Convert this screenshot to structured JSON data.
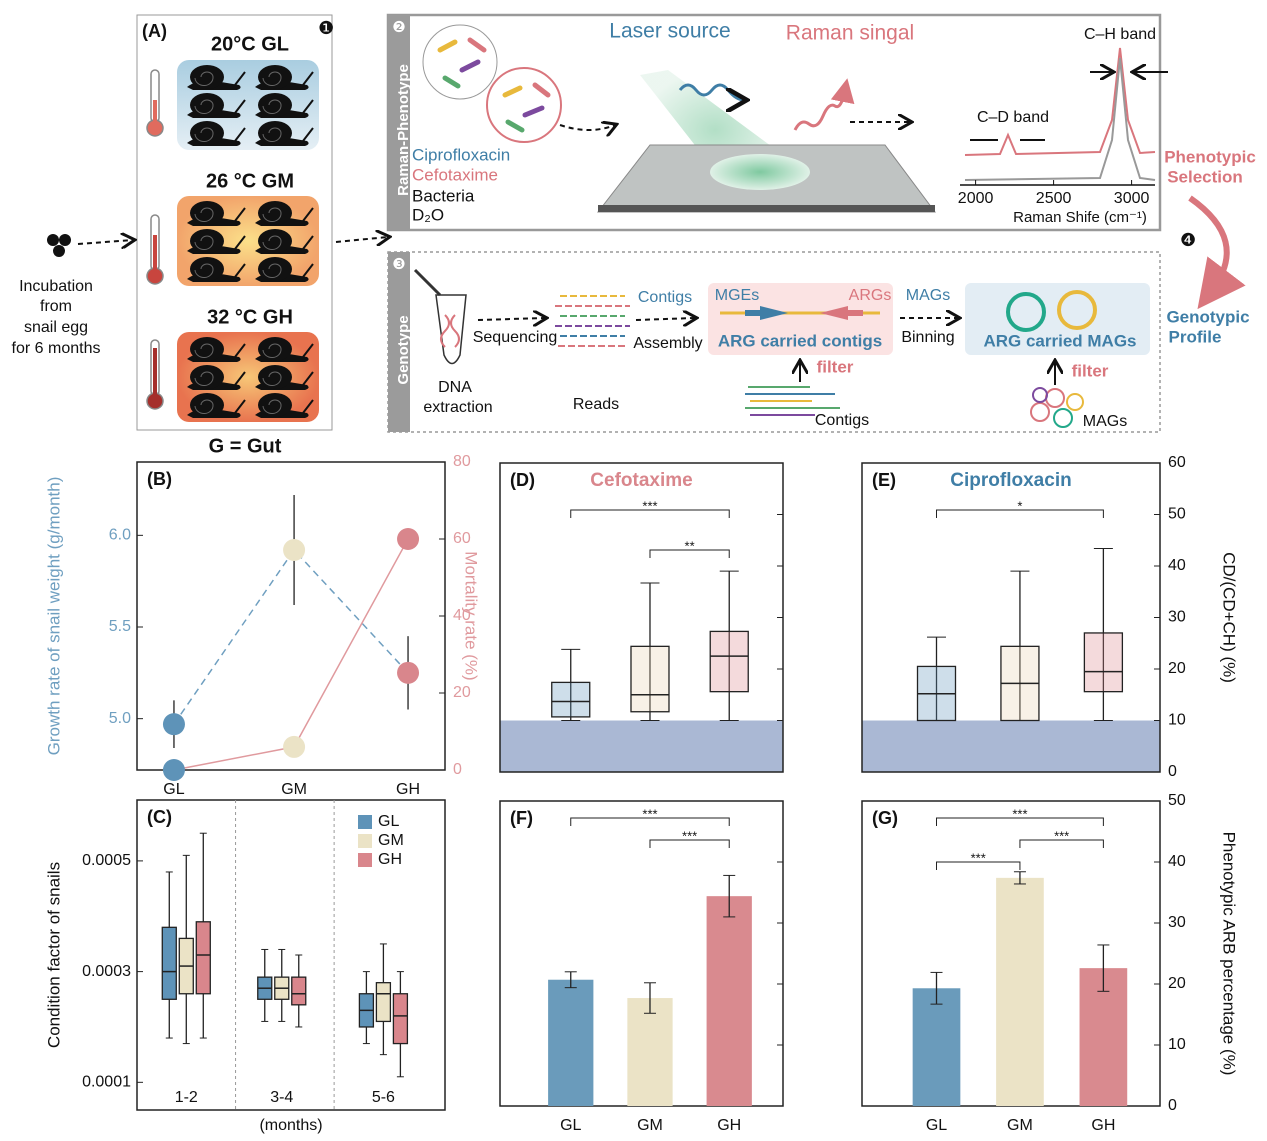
{
  "diagram": {
    "panel_a": {
      "label": "(A)",
      "step": "❶",
      "groups": [
        "20°C GL",
        "26 °C GM",
        "32 °C GH"
      ],
      "footer": "G = Gut"
    },
    "input": [
      "Incubation",
      "from",
      "snail egg",
      "for 6 months"
    ],
    "raman": {
      "step": "❷",
      "side": "Raman-Phenotype",
      "antibiotics": [
        "Ciprofloxacin",
        "Cefotaxime"
      ],
      "bacteria": "Bacteria",
      "water": "D₂O",
      "laser": "Laser source",
      "signal": "Raman singal",
      "ch": "C–H band",
      "cd": "C–D band",
      "spectrum": {
        "xlim": [
          1900,
          3150
        ],
        "xticks": [
          2000,
          2500,
          3000
        ],
        "x_label": "Raman Shife (cm⁻¹)"
      }
    },
    "selection": {
      "step": "❹",
      "phenotypic": [
        "Phenotypic",
        "Selection"
      ],
      "genotypic": [
        "Genotypic",
        "Profile"
      ]
    },
    "genotype": {
      "step": "❸",
      "side": "Genotype",
      "dna": [
        "DNA",
        "extraction"
      ],
      "sequencing": "Sequencing",
      "reads": "Reads",
      "contigs": "Contigs",
      "assembly": "Assembly",
      "mges": "MGEs",
      "args": "ARGs",
      "arg_contigs": "ARG carried contigs",
      "filter1": "filter",
      "contigs2": "Contigs",
      "mags": "MAGs",
      "binning": "Binning",
      "arg_mags": "ARG carried MAGs",
      "filter2": "filter",
      "mags2": "MAGs"
    }
  },
  "chart_data": [
    {
      "panel": "(B)",
      "type": "line",
      "categories": [
        "GL",
        "GM",
        "GH"
      ],
      "point_colors": [
        "#5e93b8",
        "#ebe3c6",
        "#d9868c"
      ],
      "ylim": [
        4.72,
        6.4
      ],
      "yticks": [
        {
          "value": 5,
          "label": "5.0"
        },
        5.5,
        {
          "value": 6,
          "label": "6.0"
        }
      ],
      "y_label": "Growth rate of snail weight (g/month)",
      "y2lim": [
        0,
        80
      ],
      "y2ticks": [
        0,
        20,
        40,
        60,
        80
      ],
      "y2_label": "Mortality rate (%)",
      "series": [
        {
          "color": "#6f9fc0",
          "dashed": true,
          "values": [
            4.97,
            5.92,
            5.25
          ],
          "errors": [
            0.13,
            0.3,
            0.2
          ]
        },
        {
          "color": "#e09a9e",
          "axis": "y2",
          "values": [
            0,
            6,
            60
          ]
        }
      ]
    },
    {
      "panel": "(C)",
      "type": "box",
      "categories": [
        "1-2",
        "3-4",
        "5-6"
      ],
      "x_label": "(months)",
      "y_label": "Condition factor of snails",
      "ylim": [
        5e-05,
        0.00061
      ],
      "yticks": [
        0.0001,
        0.0003,
        0.0005
      ],
      "legend": "top-right",
      "series": [
        {
          "name": "GL",
          "color": "#5e93b8",
          "values": [
            {
              "min": 0.00018,
              "q1": 0.00025,
              "median": 0.0003,
              "q3": 0.00038,
              "max": 0.00048
            },
            {
              "min": 0.00021,
              "q1": 0.00025,
              "median": 0.00027,
              "q3": 0.00029,
              "max": 0.00034
            },
            {
              "min": 0.00017,
              "q1": 0.0002,
              "median": 0.00023,
              "q3": 0.00026,
              "max": 0.0003
            }
          ]
        },
        {
          "name": "GM",
          "color": "#ebe3c6",
          "values": [
            {
              "min": 0.00017,
              "q1": 0.00026,
              "median": 0.00031,
              "q3": 0.00036,
              "max": 0.00051
            },
            {
              "min": 0.00021,
              "q1": 0.00025,
              "median": 0.00027,
              "q3": 0.00029,
              "max": 0.00034
            },
            {
              "min": 0.00015,
              "q1": 0.00021,
              "median": 0.00026,
              "q3": 0.00028,
              "max": 0.00035
            }
          ]
        },
        {
          "name": "GH",
          "color": "#d9868c",
          "values": [
            {
              "min": 0.00018,
              "q1": 0.00026,
              "median": 0.00033,
              "q3": 0.00039,
              "max": 0.00055
            },
            {
              "min": 0.0002,
              "q1": 0.00024,
              "median": 0.00026,
              "q3": 0.00029,
              "max": 0.00033
            },
            {
              "min": 0.00011,
              "q1": 0.00017,
              "median": 0.00022,
              "q3": 0.00026,
              "max": 0.0003
            }
          ]
        }
      ]
    },
    {
      "panel": "(D)",
      "type": "box",
      "title": "Cefotaxime",
      "title_color": "#d9868c",
      "ylim": [
        0,
        60
      ],
      "yticks": [
        0,
        10,
        20,
        30,
        40,
        50,
        60
      ],
      "tick_labels": false,
      "shade_below": 10,
      "colors": [
        "#5e93b8",
        "#e8cfae",
        "#d9868c"
      ],
      "boxes": [
        {
          "min": 10,
          "q1": 10.7,
          "median": 13.7,
          "q3": 17.4,
          "max": 23.8
        },
        {
          "min": 10,
          "q1": 11.7,
          "median": 15,
          "q3": 24.4,
          "max": 36.7
        },
        {
          "min": 10,
          "q1": 15.6,
          "median": 22.5,
          "q3": 27.3,
          "max": 39
        }
      ],
      "brackets": [
        {
          "from": 0,
          "to": 2,
          "label": "***"
        },
        {
          "from": 1,
          "to": 2,
          "label": "**"
        }
      ]
    },
    {
      "panel": "(E)",
      "type": "box",
      "title": "Ciprofloxacin",
      "title_color": "#3f7ea6",
      "ylim": [
        0,
        60
      ],
      "yticks": [
        0,
        10,
        20,
        30,
        40,
        50,
        60
      ],
      "tick_labels": true,
      "y_label": "CD/(CD+CH) (%)",
      "shade_below": 10,
      "colors": [
        "#5e93b8",
        "#e8cfae",
        "#d9868c"
      ],
      "boxes": [
        {
          "min": 10,
          "q1": 10,
          "median": 15.2,
          "q3": 20.5,
          "max": 26.2
        },
        {
          "min": 10,
          "q1": 10,
          "median": 17.2,
          "q3": 24.4,
          "max": 39
        },
        {
          "min": 10,
          "q1": 15.6,
          "median": 19.5,
          "q3": 27,
          "max": 43.4
        }
      ],
      "brackets": [
        {
          "from": 0,
          "to": 2,
          "label": "*"
        }
      ]
    },
    {
      "panel": "(F)",
      "type": "bar",
      "categories": [
        "GL",
        "GM",
        "GH"
      ],
      "colors": [
        "#6a9bbb",
        "#ebe3c6",
        "#d98a8f"
      ],
      "values": [
        20.7,
        17.7,
        34.4
      ],
      "errors": [
        1.3,
        2.5,
        3.4
      ],
      "ylim": [
        0,
        50
      ],
      "yticks": [
        0,
        10,
        20,
        30,
        40,
        50
      ],
      "tick_labels": false,
      "brackets": [
        {
          "from": 0,
          "to": 2,
          "label": "***"
        },
        {
          "from": 1,
          "to": 2,
          "label": "***"
        }
      ]
    },
    {
      "panel": "(G)",
      "type": "bar",
      "categories": [
        "GL",
        "GM",
        "GH"
      ],
      "colors": [
        "#6a9bbb",
        "#ebe3c6",
        "#d98a8f"
      ],
      "values": [
        19.3,
        37.4,
        22.6
      ],
      "errors": [
        2.6,
        1,
        3.8
      ],
      "ylim": [
        0,
        50
      ],
      "yticks": [
        0,
        10,
        20,
        30,
        40,
        50
      ],
      "tick_labels": true,
      "y_label": "Phenotypic ARB percentage (%)",
      "brackets": [
        {
          "from": 0,
          "to": 2,
          "label": "***"
        },
        {
          "from": 1,
          "to": 2,
          "label": "***"
        },
        {
          "from": 0,
          "to": 1,
          "label": "***"
        }
      ]
    }
  ]
}
